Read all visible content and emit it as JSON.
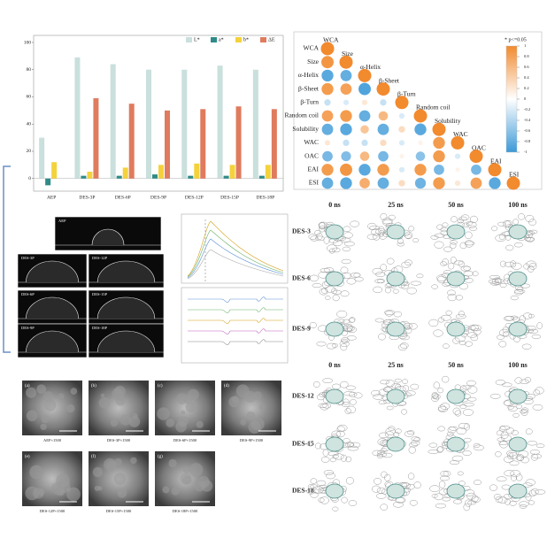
{
  "chart_data": [
    {
      "type": "bar",
      "categories": [
        "AEP",
        "DES-3P",
        "DES-6P",
        "DES-9P",
        "DES-12P",
        "DES-15P",
        "DES-18P"
      ],
      "series": [
        {
          "name": "L*",
          "color": "#c9e0dc",
          "values": [
            30,
            89,
            84,
            80,
            80,
            83,
            80
          ]
        },
        {
          "name": "a*",
          "color": "#2e8b87",
          "values": [
            -5,
            2,
            2,
            3,
            2,
            2,
            2
          ]
        },
        {
          "name": "b*",
          "color": "#f4d23c",
          "values": [
            12,
            5,
            8,
            10,
            11,
            10,
            10
          ]
        },
        {
          "name": "ΔE",
          "color": "#e07b5e",
          "values": [
            null,
            59,
            55,
            50,
            51,
            53,
            51
          ]
        }
      ],
      "ylim": [
        -8,
        100
      ],
      "yticks": [
        0,
        20,
        40,
        60,
        80,
        100
      ],
      "legend": "top-right"
    },
    {
      "type": "correlation",
      "variables": [
        "WCA",
        "Size",
        "α-Helix",
        "β-Sheet",
        "β-Turn",
        "Random coil",
        "Solubility",
        "WAC",
        "OAC",
        "EAI",
        "ESI"
      ],
      "values": [
        [],
        [
          0.9
        ],
        [
          -0.85,
          -0.8
        ],
        [
          0.85,
          0.8,
          -0.9
        ],
        [
          -0.3,
          -0.2,
          0.2,
          -0.3
        ],
        [
          0.8,
          0.85,
          -0.8,
          0.6,
          -0.2
        ],
        [
          -0.8,
          -0.85,
          0.5,
          -0.8,
          0.3,
          -0.85
        ],
        [
          0.2,
          -0.3,
          -0.3,
          0.3,
          -0.2,
          0.1,
          0.85
        ],
        [
          -0.7,
          -0.65,
          0.6,
          -0.7,
          0.1,
          -0.6,
          0.85,
          -0.2
        ],
        [
          0.85,
          0.9,
          -0.85,
          0.85,
          -0.2,
          0.85,
          -0.7,
          0.1,
          -0.7
        ],
        [
          -0.8,
          -0.85,
          0.7,
          -0.8,
          0.3,
          -0.75,
          0.85,
          0.2,
          0.8,
          -0.85
        ]
      ],
      "colors": {
        "negative": "#3d9ad8",
        "positive": "#f28a2e"
      },
      "colorbar_ticks": [
        1,
        0.8,
        0.6,
        0.4,
        0.2,
        0,
        -0.2,
        -0.4,
        -0.6,
        -0.8,
        -1
      ],
      "legend": "* p<=0.05"
    }
  ],
  "md_snapshots": {
    "times": [
      "0 ns",
      "25 ns",
      "50 ns",
      "100 ns"
    ],
    "rows": [
      "DES-3",
      "DES-6",
      "DES-9",
      "DES-12",
      "DES-15",
      "DES-18"
    ]
  },
  "contact_angle": {
    "labels": [
      "AEP",
      "DES-3P",
      "DES-12P",
      "DES-6P",
      "DES-15P",
      "DES-9P",
      "DES-18P"
    ]
  },
  "sem": {
    "panels": [
      {
        "tag": "(a)",
        "caption": "AEP×1500"
      },
      {
        "tag": "(b)",
        "caption": "DES-3P×1500"
      },
      {
        "tag": "(c)",
        "caption": "DES-6P×1500"
      },
      {
        "tag": "(d)",
        "caption": "DES-9P×1500"
      },
      {
        "tag": "(e)",
        "caption": "DES-12P×1500"
      },
      {
        "tag": "(f)",
        "caption": "DES-15P×1500"
      },
      {
        "tag": "(g)",
        "caption": "DES-18P×1500"
      }
    ]
  }
}
